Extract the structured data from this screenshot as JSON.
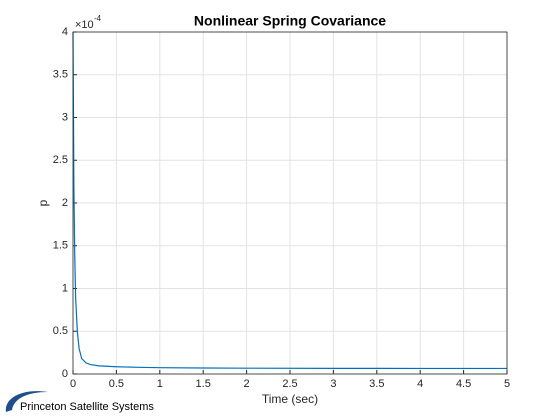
{
  "chart_data": {
    "type": "line",
    "title": "Nonlinear Spring Covariance",
    "x_label": "Time (sec)",
    "y_label": "p",
    "y_scale_label": {
      "base": "×10",
      "exponent": "-4"
    },
    "x": [
      0,
      0.01,
      0.02,
      0.03,
      0.05,
      0.07,
      0.1,
      0.15,
      0.2,
      0.3,
      0.5,
      0.75,
      1,
      1.5,
      2,
      3,
      4,
      5
    ],
    "series": [
      {
        "name": "p",
        "color": "#0072bd",
        "values": [
          4,
          2.2,
          1.4,
          0.9,
          0.5,
          0.3,
          0.18,
          0.13,
          0.11,
          0.095,
          0.085,
          0.078,
          0.074,
          0.07,
          0.068,
          0.066,
          0.065,
          0.065
        ]
      }
    ],
    "xlim": [
      0,
      5
    ],
    "xticks": [
      0,
      0.5,
      1,
      1.5,
      2,
      2.5,
      3,
      3.5,
      4,
      4.5,
      5
    ],
    "ylim": [
      0,
      4
    ],
    "yticks": [
      0,
      0.5,
      1,
      1.5,
      2,
      2.5,
      3,
      3.5,
      4
    ],
    "grid": true
  },
  "logo": {
    "text": "Princeton Satellite Systems"
  }
}
